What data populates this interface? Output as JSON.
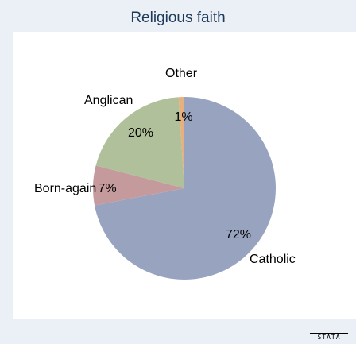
{
  "chart_data": {
    "type": "pie",
    "title": "Religious faith",
    "slices": [
      {
        "label": "Catholic",
        "value": 72,
        "value_label": "72%",
        "color": "#98a4bf"
      },
      {
        "label": "Born-again",
        "value": 7,
        "value_label": "7%",
        "color": "#c49a9c"
      },
      {
        "label": "Anglican",
        "value": 20,
        "value_label": "20%",
        "color": "#b0c09a"
      },
      {
        "label": "Other",
        "value": 1,
        "value_label": "1%",
        "color": "#e8b07c"
      }
    ],
    "start": "12 o'clock",
    "direction": "clockwise"
  },
  "logo": {
    "text": "STATA"
  },
  "colors": {
    "background": "#eaf0f5",
    "plot_area": "#ffffff",
    "title": "#1e3a5a"
  }
}
